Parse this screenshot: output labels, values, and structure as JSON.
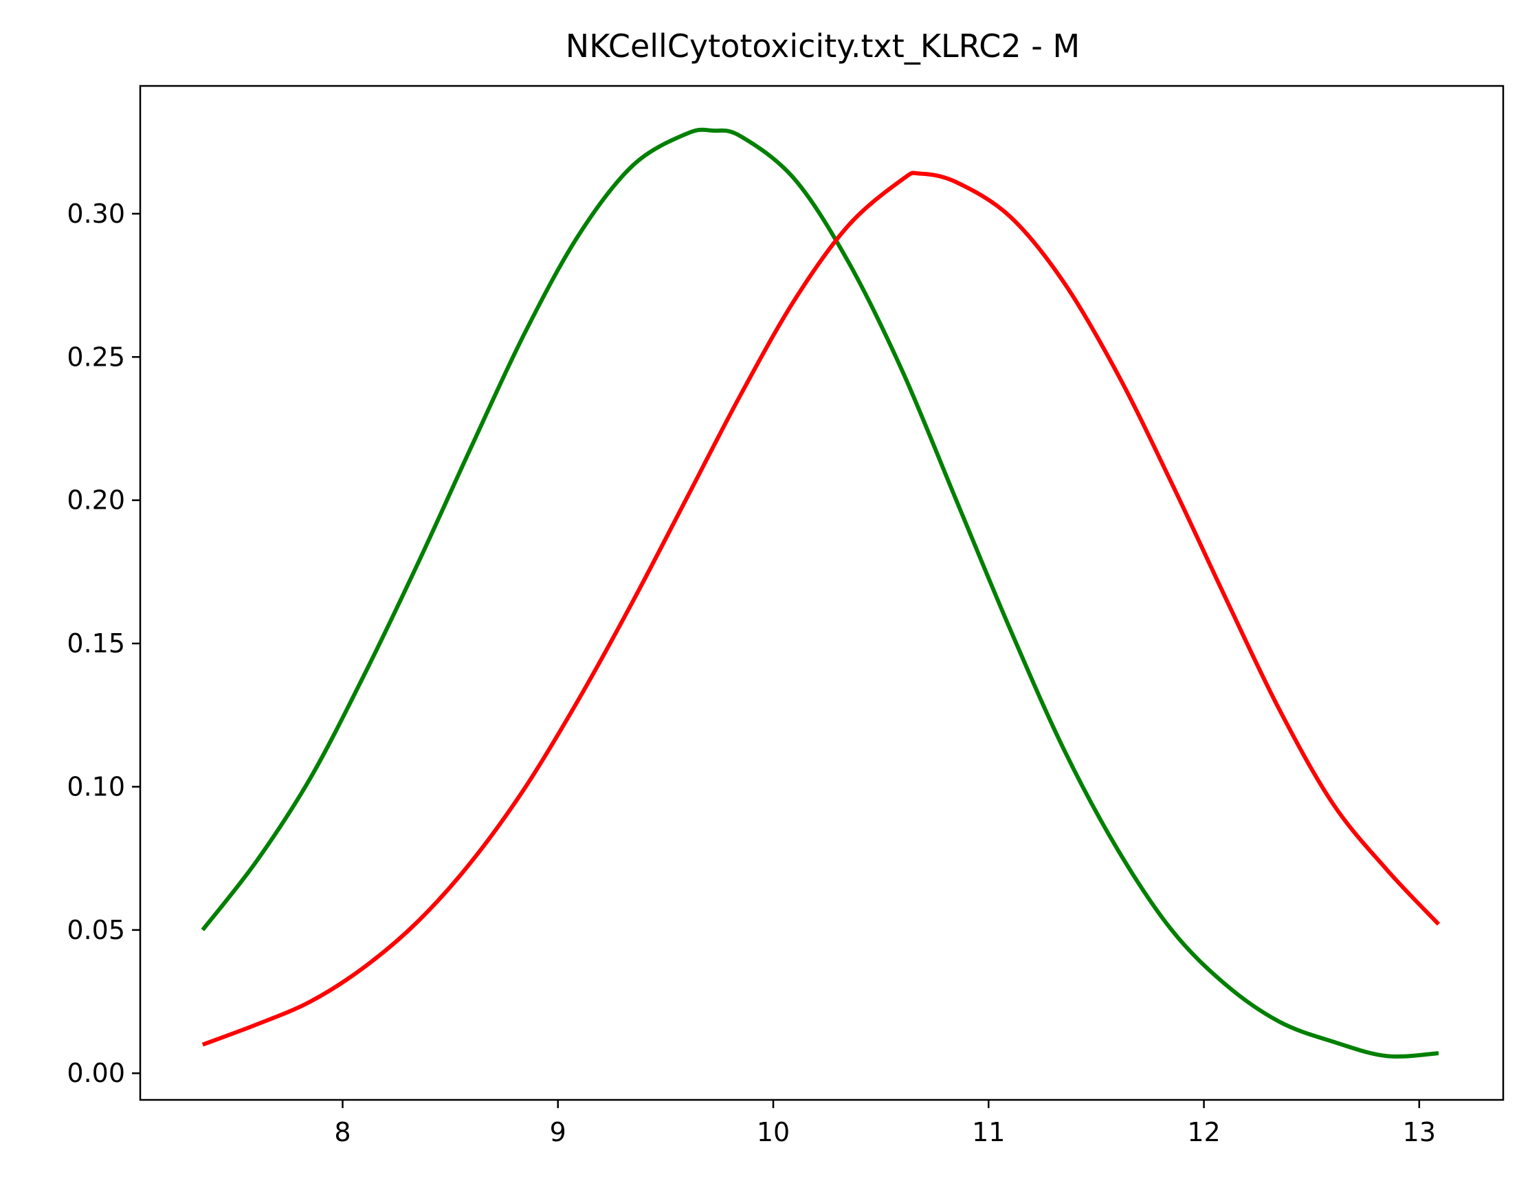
{
  "chart_data": {
    "type": "line",
    "title": "NKCellCytotoxicity.txt_KLRC2 - M",
    "xlabel": "",
    "ylabel": "",
    "xlim": [
      7.06,
      13.39
    ],
    "ylim": [
      -0.0093,
      0.3446
    ],
    "x_ticks": [
      8,
      9,
      10,
      11,
      12,
      13
    ],
    "x_tick_labels": [
      "8",
      "9",
      "10",
      "11",
      "12",
      "13"
    ],
    "y_ticks": [
      0.0,
      0.05,
      0.1,
      0.15,
      0.2,
      0.25,
      0.3
    ],
    "y_tick_labels": [
      "0.00",
      "0.05",
      "0.10",
      "0.15",
      "0.20",
      "0.25",
      "0.30"
    ],
    "grid": false,
    "legend": "none",
    "series": [
      {
        "color": "#008000",
        "x": [
          7.35,
          7.6,
          7.85,
          8.1,
          8.35,
          8.6,
          8.85,
          9.1,
          9.35,
          9.6,
          9.72,
          9.85,
          10.1,
          10.35,
          10.6,
          10.85,
          11.1,
          11.35,
          11.6,
          11.85,
          12.1,
          12.35,
          12.6,
          12.85,
          13.09
        ],
        "values": [
          0.05,
          0.074,
          0.103,
          0.139,
          0.178,
          0.219,
          0.259,
          0.293,
          0.317,
          0.328,
          0.329,
          0.327,
          0.312,
          0.283,
          0.245,
          0.2,
          0.155,
          0.113,
          0.078,
          0.05,
          0.031,
          0.018,
          0.011,
          0.006,
          0.007
        ]
      },
      {
        "color": "#ff0000",
        "x": [
          7.35,
          7.6,
          7.85,
          8.1,
          8.35,
          8.6,
          8.85,
          9.1,
          9.35,
          9.6,
          9.85,
          10.1,
          10.35,
          10.6,
          10.68,
          10.85,
          11.1,
          11.35,
          11.6,
          11.85,
          12.1,
          12.35,
          12.6,
          12.85,
          13.09
        ],
        "values": [
          0.01,
          0.017,
          0.025,
          0.037,
          0.053,
          0.074,
          0.1,
          0.131,
          0.165,
          0.201,
          0.237,
          0.27,
          0.296,
          0.312,
          0.314,
          0.311,
          0.299,
          0.276,
          0.244,
          0.206,
          0.166,
          0.127,
          0.094,
          0.071,
          0.052
        ]
      }
    ]
  }
}
